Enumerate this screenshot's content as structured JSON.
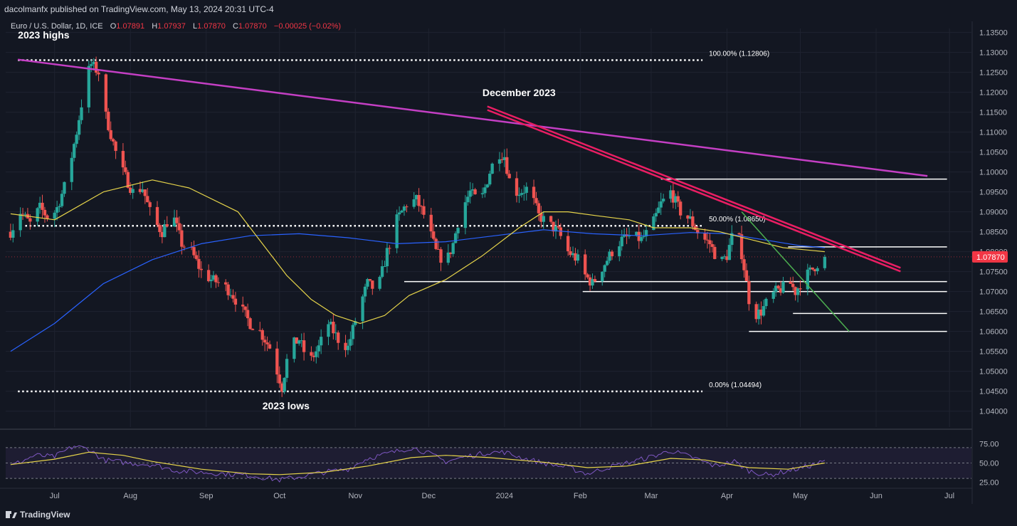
{
  "publisher_line": "dacolmanfx published on TradingView.com, May 13, 2024 20:31 UTC-4",
  "legend": {
    "symbol": "Euro / U.S. Dollar, 1D, ICE",
    "open_label": "O",
    "open": "1.07891",
    "high_label": "H",
    "high": "1.07937",
    "low_label": "L",
    "low": "1.07870",
    "close_label": "C",
    "close": "1.07870",
    "change": "−0.00025 (−0.02%)"
  },
  "brand": "TradingView",
  "colors": {
    "background": "#131722",
    "up": "#26a69a",
    "down": "#ef5350",
    "ma50": "#e6d44a",
    "ma200": "#2962ff",
    "long_trend": "#c43fc4",
    "resistance": "#e91e63",
    "support_line": "#4caf50",
    "rsi": "#7e57c2",
    "rsi_ma": "#e6d44a",
    "price_tag": "#f23645"
  },
  "chart_data": {
    "type": "candlestick",
    "title": "Euro / U.S. Dollar, 1D, ICE",
    "ylim": [
      1.036,
      1.136
    ],
    "y_ticks": [
      "1.13500",
      "1.13000",
      "1.12500",
      "1.12000",
      "1.11500",
      "1.11000",
      "1.10500",
      "1.10000",
      "1.09500",
      "1.09000",
      "1.08500",
      "1.08000",
      "1.07500",
      "1.07000",
      "1.06500",
      "1.06000",
      "1.05500",
      "1.05000",
      "1.04500",
      "1.04000"
    ],
    "x_ticks": [
      {
        "label": "Jul",
        "day": 0
      },
      {
        "label": "Aug",
        "day": 31
      },
      {
        "label": "Sep",
        "day": 62
      },
      {
        "label": "Oct",
        "day": 92
      },
      {
        "label": "Nov",
        "day": 123
      },
      {
        "label": "Dec",
        "day": 153
      },
      {
        "label": "2024",
        "day": 184
      },
      {
        "label": "Feb",
        "day": 215
      },
      {
        "label": "Mar",
        "day": 244
      },
      {
        "label": "Apr",
        "day": 275
      },
      {
        "label": "May",
        "day": 305
      },
      {
        "label": "Jun",
        "day": 336
      },
      {
        "label": "Jul",
        "day": 366
      }
    ],
    "last_price": "1.07870",
    "price_path": [
      [
        -18,
        1.085
      ],
      [
        -14,
        1.09
      ],
      [
        -10,
        1.087
      ],
      [
        -6,
        1.091
      ],
      [
        -2,
        1.088
      ],
      [
        1,
        1.091
      ],
      [
        5,
        1.098
      ],
      [
        9,
        1.11
      ],
      [
        13,
        1.124
      ],
      [
        15,
        1.127
      ],
      [
        18,
        1.125
      ],
      [
        21,
        1.114
      ],
      [
        25,
        1.105
      ],
      [
        28,
        1.1
      ],
      [
        32,
        1.095
      ],
      [
        36,
        1.096
      ],
      [
        40,
        1.088
      ],
      [
        44,
        1.085
      ],
      [
        48,
        1.09
      ],
      [
        52,
        1.082
      ],
      [
        56,
        1.08
      ],
      [
        60,
        1.075
      ],
      [
        64,
        1.073
      ],
      [
        68,
        1.072
      ],
      [
        72,
        1.07
      ],
      [
        76,
        1.066
      ],
      [
        80,
        1.062
      ],
      [
        84,
        1.06
      ],
      [
        88,
        1.056
      ],
      [
        91,
        1.05
      ],
      [
        93,
        1.046
      ],
      [
        96,
        1.056
      ],
      [
        100,
        1.058
      ],
      [
        104,
        1.052
      ],
      [
        108,
        1.056
      ],
      [
        112,
        1.062
      ],
      [
        116,
        1.058
      ],
      [
        120,
        1.056
      ],
      [
        124,
        1.065
      ],
      [
        128,
        1.072
      ],
      [
        132,
        1.07
      ],
      [
        136,
        1.08
      ],
      [
        140,
        1.088
      ],
      [
        144,
        1.092
      ],
      [
        148,
        1.093
      ],
      [
        152,
        1.088
      ],
      [
        156,
        1.08
      ],
      [
        160,
        1.077
      ],
      [
        163,
        1.082
      ],
      [
        166,
        1.09
      ],
      [
        170,
        1.095
      ],
      [
        174,
        1.092
      ],
      [
        178,
        1.1
      ],
      [
        181,
        1.105
      ],
      [
        184,
        1.104
      ],
      [
        187,
        1.095
      ],
      [
        190,
        1.095
      ],
      [
        194,
        1.096
      ],
      [
        198,
        1.089
      ],
      [
        202,
        1.087
      ],
      [
        206,
        1.085
      ],
      [
        210,
        1.08
      ],
      [
        214,
        1.078
      ],
      [
        217,
        1.074
      ],
      [
        220,
        1.072
      ],
      [
        224,
        1.076
      ],
      [
        228,
        1.08
      ],
      [
        232,
        1.083
      ],
      [
        236,
        1.084
      ],
      [
        240,
        1.083
      ],
      [
        244,
        1.086
      ],
      [
        248,
        1.092
      ],
      [
        252,
        1.095
      ],
      [
        256,
        1.09
      ],
      [
        260,
        1.088
      ],
      [
        264,
        1.084
      ],
      [
        268,
        1.082
      ],
      [
        272,
        1.077
      ],
      [
        275,
        1.079
      ],
      [
        278,
        1.086
      ],
      [
        280,
        1.083
      ],
      [
        282,
        1.076
      ],
      [
        284,
        1.068
      ],
      [
        286,
        1.064
      ],
      [
        289,
        1.065
      ],
      [
        292,
        1.068
      ],
      [
        295,
        1.07
      ],
      [
        298,
        1.071
      ],
      [
        301,
        1.072
      ],
      [
        303,
        1.07
      ],
      [
        306,
        1.073
      ],
      [
        309,
        1.075
      ],
      [
        312,
        1.077
      ],
      [
        315,
        1.0787
      ]
    ],
    "ma50_path": [
      [
        -18,
        1.0895
      ],
      [
        0,
        1.088
      ],
      [
        20,
        1.095
      ],
      [
        40,
        1.098
      ],
      [
        55,
        1.096
      ],
      [
        75,
        1.09
      ],
      [
        85,
        1.082
      ],
      [
        95,
        1.074
      ],
      [
        105,
        1.068
      ],
      [
        115,
        1.064
      ],
      [
        125,
        1.062
      ],
      [
        135,
        1.064
      ],
      [
        145,
        1.069
      ],
      [
        160,
        1.073
      ],
      [
        175,
        1.079
      ],
      [
        190,
        1.086
      ],
      [
        200,
        1.09
      ],
      [
        210,
        1.09
      ],
      [
        222,
        1.089
      ],
      [
        235,
        1.088
      ],
      [
        245,
        1.086
      ],
      [
        260,
        1.086
      ],
      [
        272,
        1.085
      ],
      [
        285,
        1.083
      ],
      [
        298,
        1.081
      ],
      [
        315,
        1.08
      ]
    ],
    "ma200_path": [
      [
        -18,
        1.055
      ],
      [
        0,
        1.062
      ],
      [
        20,
        1.072
      ],
      [
        40,
        1.078
      ],
      [
        60,
        1.082
      ],
      [
        80,
        1.084
      ],
      [
        100,
        1.0845
      ],
      [
        120,
        1.0835
      ],
      [
        140,
        1.082
      ],
      [
        160,
        1.0825
      ],
      [
        180,
        1.084
      ],
      [
        200,
        1.0855
      ],
      [
        220,
        1.0845
      ],
      [
        240,
        1.084
      ],
      [
        260,
        1.0848
      ],
      [
        275,
        1.0845
      ],
      [
        290,
        1.083
      ],
      [
        305,
        1.0815
      ],
      [
        315,
        1.081
      ]
    ],
    "horizontal_levels": [
      {
        "price": 1.12806,
        "from": -15,
        "to": 265,
        "style": "dotted",
        "label": "100.00% (1.12806)"
      },
      {
        "price": 1.0865,
        "from": -12,
        "to": 265,
        "style": "dotted",
        "label": "50.00% (1.08650)"
      },
      {
        "price": 1.04494,
        "from": -15,
        "to": 265,
        "style": "dotted",
        "label": "0.00% (1.04494)"
      },
      {
        "price": 1.0982,
        "from": 248,
        "to": 365,
        "style": "solid",
        "label": ""
      },
      {
        "price": 1.0812,
        "from": 300,
        "to": 365,
        "style": "solid",
        "label": ""
      },
      {
        "price": 1.0725,
        "from": 143,
        "to": 365,
        "style": "solid",
        "label": ""
      },
      {
        "price": 1.07,
        "from": 216,
        "to": 365,
        "style": "solid",
        "label": ""
      },
      {
        "price": 1.0645,
        "from": 302,
        "to": 365,
        "style": "solid",
        "label": ""
      },
      {
        "price": 1.06,
        "from": 284,
        "to": 365,
        "style": "solid",
        "label": ""
      }
    ],
    "trendlines": [
      {
        "name": "2023-highs-trendline",
        "from": [
          -15,
          1.1282
        ],
        "to": [
          357,
          1.099
        ],
        "color": "long_trend"
      },
      {
        "name": "december-2023-resistance",
        "from": [
          177,
          1.116
        ],
        "to": [
          346,
          1.0755
        ],
        "color": "resistance"
      },
      {
        "name": "april-downtrend-line",
        "from": [
          281,
          1.09
        ],
        "to": [
          325,
          1.06
        ],
        "color": "support_line"
      }
    ],
    "annotations": [
      {
        "text": "2023 highs",
        "day": -15,
        "price": 1.1335
      },
      {
        "text": "December 2023",
        "day": 175,
        "price": 1.119
      },
      {
        "text": "2023 lows",
        "day": 85,
        "price": 1.0405
      }
    ],
    "rsi": {
      "y_ticks": [
        "75.00",
        "50.00",
        "25.00"
      ],
      "levels": [
        70,
        50,
        30
      ],
      "values": [
        [
          -18,
          46
        ],
        [
          -8,
          60
        ],
        [
          0,
          58
        ],
        [
          8,
          72
        ],
        [
          14,
          68
        ],
        [
          20,
          54
        ],
        [
          30,
          50
        ],
        [
          40,
          48
        ],
        [
          50,
          40
        ],
        [
          60,
          38
        ],
        [
          70,
          36
        ],
        [
          80,
          34
        ],
        [
          92,
          28
        ],
        [
          100,
          32
        ],
        [
          110,
          38
        ],
        [
          120,
          42
        ],
        [
          128,
          56
        ],
        [
          136,
          62
        ],
        [
          146,
          70
        ],
        [
          152,
          64
        ],
        [
          160,
          52
        ],
        [
          168,
          58
        ],
        [
          178,
          64
        ],
        [
          184,
          64
        ],
        [
          192,
          56
        ],
        [
          200,
          50
        ],
        [
          210,
          44
        ],
        [
          218,
          36
        ],
        [
          226,
          44
        ],
        [
          234,
          50
        ],
        [
          244,
          58
        ],
        [
          252,
          66
        ],
        [
          262,
          56
        ],
        [
          270,
          46
        ],
        [
          278,
          52
        ],
        [
          284,
          40
        ],
        [
          292,
          34
        ],
        [
          300,
          40
        ],
        [
          306,
          44
        ],
        [
          315,
          52
        ]
      ],
      "ma_values": [
        [
          -18,
          48
        ],
        [
          0,
          55
        ],
        [
          14,
          64
        ],
        [
          28,
          60
        ],
        [
          40,
          52
        ],
        [
          60,
          42
        ],
        [
          80,
          36
        ],
        [
          92,
          35
        ],
        [
          110,
          38
        ],
        [
          128,
          46
        ],
        [
          146,
          57
        ],
        [
          160,
          60
        ],
        [
          178,
          57
        ],
        [
          200,
          51
        ],
        [
          218,
          44
        ],
        [
          234,
          46
        ],
        [
          252,
          56
        ],
        [
          266,
          54
        ],
        [
          284,
          44
        ],
        [
          300,
          42
        ],
        [
          315,
          50
        ]
      ]
    }
  }
}
